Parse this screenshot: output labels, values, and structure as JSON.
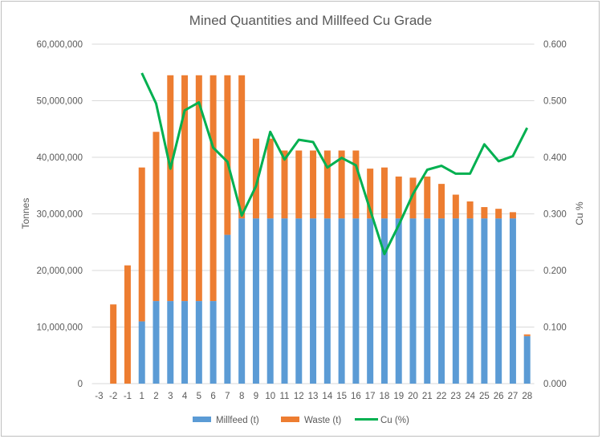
{
  "chart_data": {
    "type": "bar",
    "title": "Mined Quantities and Millfeed Cu Grade",
    "ylabel": "Tonnes",
    "y2label": "Cu %",
    "xlabel": "",
    "ylim": [
      0,
      60000000
    ],
    "y2lim": [
      0,
      0.6
    ],
    "yticks": [
      "0",
      "10,000,000",
      "20,000,000",
      "30,000,000",
      "40,000,000",
      "50,000,000",
      "60,000,000"
    ],
    "y2ticks": [
      "0.000",
      "0.100",
      "0.200",
      "0.300",
      "0.400",
      "0.500",
      "0.600"
    ],
    "grid": true,
    "legend_position": "bottom",
    "categories": [
      "-3",
      "-2",
      "-1",
      "1",
      "2",
      "3",
      "4",
      "5",
      "6",
      "7",
      "8",
      "9",
      "10",
      "11",
      "12",
      "13",
      "14",
      "15",
      "16",
      "17",
      "18",
      "19",
      "20",
      "21",
      "22",
      "23",
      "24",
      "25",
      "26",
      "27",
      "28"
    ],
    "series": [
      {
        "name": "Millfeed (t)",
        "type": "stacked-bar",
        "color": "#5b9bd5",
        "values": [
          0,
          0,
          0,
          11000000,
          14600000,
          14600000,
          14600000,
          14600000,
          14600000,
          26300000,
          29200000,
          29200000,
          29200000,
          29200000,
          29200000,
          29200000,
          29200000,
          29200000,
          29200000,
          29200000,
          29200000,
          29200000,
          29200000,
          29200000,
          29200000,
          29200000,
          29200000,
          29200000,
          29200000,
          29200000,
          8400000
        ]
      },
      {
        "name": "Waste (t)",
        "type": "stacked-bar",
        "color": "#ed7d31",
        "values": [
          0,
          14000000,
          20900000,
          27200000,
          29900000,
          39900000,
          39900000,
          39900000,
          39900000,
          28200000,
          25300000,
          14100000,
          14100000,
          12000000,
          12000000,
          12000000,
          12000000,
          12000000,
          12000000,
          8800000,
          9000000,
          7400000,
          7200000,
          7400000,
          6100000,
          4200000,
          3000000,
          2000000,
          1700000,
          1100000,
          300000
        ]
      },
      {
        "name": "Cu (%)",
        "type": "line",
        "axis": "secondary",
        "color": "#00b050",
        "values": [
          null,
          null,
          null,
          0.549,
          0.495,
          0.38,
          0.483,
          0.497,
          0.417,
          0.392,
          0.297,
          0.349,
          0.445,
          0.396,
          0.431,
          0.427,
          0.382,
          0.399,
          0.386,
          0.307,
          0.229,
          0.28,
          0.335,
          0.378,
          0.385,
          0.371,
          0.371,
          0.423,
          0.393,
          0.402,
          0.452
        ]
      }
    ]
  }
}
